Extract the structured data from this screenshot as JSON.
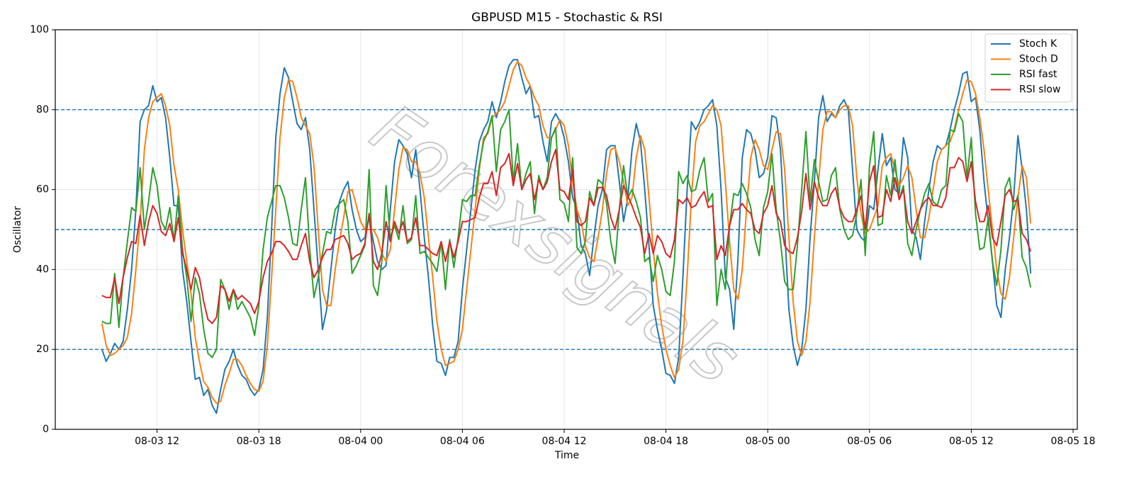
{
  "chart_data": {
    "type": "line",
    "title": "GBPUSD M15 - Stochastic & RSI",
    "xlabel": "Time",
    "ylabel": "Oscillator",
    "watermark": "Forexsignals",
    "x": [
      "08-03 08:45",
      "08-03 09:00",
      "08-03 09:15",
      "08-03 09:30",
      "08-03 09:45",
      "08-03 10:00",
      "08-03 10:15",
      "08-03 10:30",
      "08-03 10:45",
      "08-03 11:00",
      "08-03 11:15",
      "08-03 11:30",
      "08-03 11:45",
      "08-03 12:00",
      "08-03 12:15",
      "08-03 12:30",
      "08-03 12:45",
      "08-03 13:00",
      "08-03 13:15",
      "08-03 13:30",
      "08-03 13:45",
      "08-03 14:00",
      "08-03 14:15",
      "08-03 14:30",
      "08-03 14:45",
      "08-03 15:00",
      "08-03 15:15",
      "08-03 15:30",
      "08-03 15:45",
      "08-03 16:00",
      "08-03 16:15",
      "08-03 16:30",
      "08-03 16:45",
      "08-03 17:00",
      "08-03 17:15",
      "08-03 17:30",
      "08-03 17:45",
      "08-03 18:00",
      "08-03 18:15",
      "08-03 18:30",
      "08-03 18:45",
      "08-03 19:00",
      "08-03 19:15",
      "08-03 19:30",
      "08-03 19:45",
      "08-03 20:00",
      "08-03 20:15",
      "08-03 20:30",
      "08-03 20:45",
      "08-03 21:00",
      "08-03 21:15",
      "08-03 21:30",
      "08-03 21:45",
      "08-03 22:00",
      "08-03 22:15",
      "08-03 22:30",
      "08-03 22:45",
      "08-03 23:00",
      "08-03 23:15",
      "08-03 23:30",
      "08-03 23:45",
      "08-04 00:00",
      "08-04 00:15",
      "08-04 00:30",
      "08-04 00:45",
      "08-04 01:00",
      "08-04 01:15",
      "08-04 01:30",
      "08-04 01:45",
      "08-04 02:00",
      "08-04 02:15",
      "08-04 02:30",
      "08-04 02:45",
      "08-04 03:00",
      "08-04 03:15",
      "08-04 03:30",
      "08-04 03:45",
      "08-04 04:00",
      "08-04 04:15",
      "08-04 04:30",
      "08-04 04:45",
      "08-04 05:00",
      "08-04 05:15",
      "08-04 05:30",
      "08-04 05:45",
      "08-04 06:00",
      "08-04 06:15",
      "08-04 06:30",
      "08-04 06:45",
      "08-04 07:00",
      "08-04 07:15",
      "08-04 07:30",
      "08-04 07:45",
      "08-04 08:00",
      "08-04 08:15",
      "08-04 08:30",
      "08-04 08:45",
      "08-04 09:00",
      "08-04 09:15",
      "08-04 09:30",
      "08-04 09:45",
      "08-04 10:00",
      "08-04 10:15",
      "08-04 10:30",
      "08-04 10:45",
      "08-04 11:00",
      "08-04 11:15",
      "08-04 11:30",
      "08-04 11:45",
      "08-04 12:00",
      "08-04 12:15",
      "08-04 12:30",
      "08-04 12:45",
      "08-04 13:00",
      "08-04 13:15",
      "08-04 13:30",
      "08-04 13:45",
      "08-04 14:00",
      "08-04 14:15",
      "08-04 14:30",
      "08-04 14:45",
      "08-04 15:00",
      "08-04 15:15",
      "08-04 15:30",
      "08-04 15:45",
      "08-04 16:00",
      "08-04 16:15",
      "08-04 16:30",
      "08-04 16:45",
      "08-04 17:00",
      "08-04 17:15",
      "08-04 17:30",
      "08-04 17:45",
      "08-04 18:00",
      "08-04 18:15",
      "08-04 18:30",
      "08-04 18:45",
      "08-04 19:00",
      "08-04 19:15",
      "08-04 19:30",
      "08-04 19:45",
      "08-04 20:00",
      "08-04 20:15",
      "08-04 20:30",
      "08-04 20:45",
      "08-04 21:00",
      "08-04 21:15",
      "08-04 21:30",
      "08-04 21:45",
      "08-04 22:00",
      "08-04 22:15",
      "08-04 22:30",
      "08-04 22:45",
      "08-04 23:00",
      "08-04 23:15",
      "08-04 23:30",
      "08-04 23:45",
      "08-05 00:00",
      "08-05 00:15",
      "08-05 00:30",
      "08-05 00:45",
      "08-05 01:00",
      "08-05 01:15",
      "08-05 01:30",
      "08-05 01:45",
      "08-05 02:00",
      "08-05 02:15",
      "08-05 02:30",
      "08-05 02:45",
      "08-05 03:00",
      "08-05 03:15",
      "08-05 03:30",
      "08-05 03:45",
      "08-05 04:00",
      "08-05 04:15",
      "08-05 04:30",
      "08-05 04:45",
      "08-05 05:00",
      "08-05 05:15",
      "08-05 05:30",
      "08-05 05:45",
      "08-05 06:00",
      "08-05 06:15",
      "08-05 06:30",
      "08-05 06:45",
      "08-05 07:00",
      "08-05 07:15",
      "08-05 07:30",
      "08-05 07:45",
      "08-05 08:00",
      "08-05 08:15",
      "08-05 08:30",
      "08-05 08:45",
      "08-05 09:00",
      "08-05 09:15",
      "08-05 09:30",
      "08-05 09:45",
      "08-05 10:00",
      "08-05 10:15",
      "08-05 10:30",
      "08-05 10:45",
      "08-05 11:00",
      "08-05 11:15",
      "08-05 11:30",
      "08-05 11:45",
      "08-05 12:00",
      "08-05 12:15",
      "08-05 12:30",
      "08-05 12:45",
      "08-05 13:00",
      "08-05 13:15",
      "08-05 13:30",
      "08-05 13:45",
      "08-05 14:00",
      "08-05 14:15",
      "08-05 14:30",
      "08-05 14:45",
      "08-05 15:00",
      "08-05 15:15",
      "08-05 15:30"
    ],
    "series": [
      {
        "name": "Stoch K",
        "color": "#1f77b4",
        "values": [
          20,
          17,
          19,
          21.5,
          20,
          22,
          30,
          40,
          55,
          77,
          80,
          81,
          86,
          82,
          83,
          78,
          68,
          56,
          56,
          40,
          32,
          22,
          12.5,
          13,
          8.5,
          10,
          6,
          4,
          10,
          15,
          17,
          20,
          16,
          13.5,
          12.5,
          10,
          8.5,
          10,
          15,
          28,
          50,
          73,
          84,
          90.5,
          88,
          82,
          76.5,
          75,
          78,
          70,
          55,
          40,
          25,
          30,
          40,
          50,
          57,
          60,
          62,
          55,
          50,
          47,
          48,
          53,
          47,
          42,
          40,
          41,
          55,
          67,
          72.5,
          71,
          69,
          63,
          70,
          60,
          48,
          38,
          26,
          17,
          16.5,
          13.5,
          18,
          18,
          22,
          35,
          45,
          55,
          65,
          72,
          75,
          77,
          82,
          78,
          82,
          87,
          91,
          92.5,
          92.5,
          88,
          84,
          86,
          78,
          78.5,
          72,
          67,
          77,
          79,
          77,
          73,
          67,
          58,
          55,
          46,
          44,
          38.5,
          48,
          56,
          60,
          70,
          71,
          71,
          62,
          52,
          58,
          70,
          76.5,
          72,
          60,
          46,
          31,
          25,
          20,
          14,
          13.5,
          11.5,
          18,
          38,
          60,
          77,
          75,
          77,
          80,
          81,
          82.5,
          76,
          60,
          38,
          35,
          25,
          43,
          68,
          75,
          74,
          70,
          63,
          64,
          68,
          78.5,
          78,
          70,
          50,
          30,
          21,
          16,
          20,
          30,
          48,
          62,
          78,
          83.5,
          77,
          79,
          78,
          81,
          82.5,
          80,
          65,
          50,
          48,
          47,
          56,
          55,
          65,
          74,
          66,
          68,
          60,
          59,
          73,
          68,
          50,
          48,
          42.5,
          52,
          60,
          67,
          71,
          70,
          71,
          75,
          80,
          84,
          89,
          89.5,
          82,
          83,
          75,
          62,
          52,
          42,
          31,
          28,
          40,
          48,
          58,
          73.5,
          65,
          55,
          39
        ]
      },
      {
        "name": "Stoch D",
        "color": "#ff7f0e",
        "values": [
          26.5,
          21,
          18.5,
          19,
          20,
          21,
          23,
          29,
          40,
          52,
          70,
          78,
          82,
          83,
          84,
          81,
          76,
          66,
          60,
          50,
          42,
          34,
          23,
          17,
          12,
          10.5,
          8,
          6.5,
          7,
          11,
          14,
          17.5,
          17.5,
          16,
          13.5,
          11.5,
          10,
          9.5,
          12,
          21,
          38,
          55,
          73,
          83,
          87.5,
          87,
          83,
          78,
          76,
          74,
          66,
          50,
          35,
          31,
          31,
          40,
          47,
          53,
          59.5,
          60,
          56,
          52,
          50,
          50,
          50,
          48,
          44,
          42,
          45,
          55,
          65,
          70.5,
          70,
          67,
          67,
          64,
          58,
          48,
          38,
          27,
          20,
          16,
          16.5,
          17,
          20,
          25,
          35,
          45,
          55,
          65,
          73,
          74,
          78,
          79,
          80,
          82,
          86,
          90,
          92,
          91,
          88,
          86,
          83,
          81,
          76,
          73,
          73,
          75,
          77.5,
          76,
          71,
          62,
          55,
          52,
          46,
          43,
          42,
          48,
          55,
          64,
          70,
          70.5,
          67,
          62,
          56,
          58,
          68,
          73.5,
          70,
          58,
          45,
          34,
          26,
          20,
          16,
          13,
          15,
          22,
          38,
          58,
          72,
          76,
          77,
          79,
          81,
          80,
          76,
          62,
          47,
          35,
          32.5,
          40,
          55,
          68,
          72.5,
          70,
          66,
          65,
          70,
          74.5,
          74,
          65,
          48,
          32,
          22,
          18.5,
          22,
          32,
          48,
          62,
          75,
          79.5,
          79.5,
          78,
          80,
          81,
          81,
          76,
          63,
          54,
          49,
          50,
          53,
          56,
          66,
          68,
          69,
          65,
          61,
          63,
          66,
          63,
          55,
          48,
          48,
          53,
          60,
          67,
          70,
          71,
          72,
          75,
          80,
          84,
          87.5,
          87,
          84,
          78,
          70,
          60,
          50,
          40,
          34,
          32.5,
          38,
          48,
          58,
          66,
          63,
          51.5
        ]
      },
      {
        "name": "RSI fast",
        "color": "#2ca02c",
        "values": [
          27,
          26.5,
          26.5,
          39,
          25.5,
          38,
          47,
          55.5,
          54.5,
          65.5,
          50,
          57,
          65.5,
          61,
          52,
          50,
          55.5,
          47,
          58.5,
          45,
          38,
          27,
          38,
          34,
          25,
          19,
          18,
          20,
          37.5,
          35,
          30,
          35,
          30,
          32,
          30,
          28,
          23.5,
          31,
          45,
          53,
          57,
          61,
          61,
          58,
          53,
          46.5,
          46,
          55,
          63,
          45,
          33,
          38,
          44,
          49.5,
          49,
          55,
          56.5,
          57.5,
          52,
          39,
          41,
          43.5,
          46,
          65,
          36,
          33.5,
          42,
          61,
          48,
          51,
          47.5,
          56,
          46.5,
          47.5,
          58.5,
          44,
          44.5,
          43,
          41.5,
          39.5,
          47,
          35,
          47.5,
          40.5,
          48,
          57.5,
          57,
          58.5,
          58.5,
          66,
          72,
          74.5,
          78.5,
          64.5,
          75,
          77,
          80,
          62,
          71.5,
          60,
          64,
          67,
          54,
          63.5,
          60,
          63,
          73,
          75.5,
          57.5,
          56.5,
          52,
          68,
          45.5,
          44,
          47,
          59.5,
          56,
          62.5,
          61.5,
          56.5,
          47,
          41.5,
          55,
          66,
          58,
          60,
          57,
          53,
          42,
          43,
          37,
          43.5,
          40,
          34.5,
          33.5,
          42,
          64.5,
          61.5,
          63.5,
          59.5,
          60,
          65,
          68,
          57,
          59,
          31,
          40,
          35,
          51,
          59,
          58.5,
          61.5,
          59,
          55.5,
          47.5,
          43.5,
          55.5,
          59.5,
          69,
          55,
          47,
          37,
          35,
          35,
          46,
          60,
          74.5,
          57,
          67.5,
          62,
          57,
          57.5,
          63.5,
          65.5,
          55,
          50,
          47.5,
          48.5,
          54,
          62.5,
          43.5,
          66,
          74.5,
          51,
          51.5,
          63.5,
          58.5,
          67.5,
          57.5,
          61,
          46.5,
          43.5,
          50,
          55,
          59,
          61.5,
          57,
          56,
          60,
          61,
          75,
          74.5,
          79,
          77,
          63,
          73,
          54,
          45,
          45.5,
          53,
          42,
          36,
          45,
          60.5,
          63,
          55,
          58.5,
          43,
          40.5,
          35.5
        ]
      },
      {
        "name": "RSI slow",
        "color": "#d62728",
        "values": [
          33.5,
          33,
          33,
          38,
          31.5,
          38,
          43,
          47,
          46.5,
          53.5,
          46,
          52,
          56,
          54,
          49.5,
          48.5,
          51.5,
          47,
          53,
          44,
          40,
          35,
          40.5,
          38,
          32,
          27.5,
          26.5,
          28,
          36,
          35,
          32,
          35,
          32.5,
          33.5,
          32.5,
          31.5,
          29,
          32,
          38,
          42,
          44,
          47,
          47,
          46,
          44.5,
          42.5,
          42.5,
          46,
          49,
          42,
          38,
          40,
          43,
          45,
          45,
          47.5,
          48,
          48.5,
          46.5,
          42.5,
          43.5,
          44,
          46.5,
          54,
          42,
          40,
          44,
          52,
          47,
          52,
          49,
          52,
          47,
          48,
          53,
          46,
          46,
          45,
          44,
          43.5,
          47,
          42,
          47,
          43,
          47,
          52,
          52,
          52.5,
          53,
          58,
          61.5,
          61.5,
          64.5,
          58.5,
          65.5,
          66.5,
          69,
          61,
          66.5,
          60,
          62.5,
          64,
          57.5,
          62.5,
          60,
          62,
          67,
          70,
          60,
          59.5,
          57.5,
          65,
          52,
          51,
          52,
          58,
          56,
          60.5,
          60.5,
          58.5,
          53,
          50,
          55,
          61,
          58.5,
          56,
          53,
          50.5,
          44,
          49,
          44,
          48.5,
          47,
          44,
          43,
          47.5,
          57.5,
          56.5,
          58,
          55.5,
          56,
          58,
          59.5,
          55.5,
          56,
          42.5,
          46,
          43.5,
          51,
          55,
          55,
          56.5,
          55,
          54,
          50,
          49,
          54,
          56,
          61,
          54,
          52,
          46,
          44.5,
          44,
          48,
          54.5,
          64,
          55,
          62,
          58,
          56,
          56,
          59,
          60.5,
          55.5,
          53,
          52,
          52,
          55,
          58.5,
          50,
          62,
          66,
          53,
          53.5,
          60,
          57,
          63,
          57.5,
          60,
          52,
          49,
          52,
          55,
          57,
          58,
          56,
          56,
          55.5,
          58,
          65.5,
          65.5,
          68,
          67,
          62,
          67,
          57,
          52,
          52,
          56,
          48,
          46,
          52,
          58.5,
          60,
          57,
          57.5,
          49,
          47.5,
          44.5
        ]
      }
    ],
    "xlim": [
      "08-03 06:00",
      "08-05 18:15"
    ],
    "xticks": [
      {
        "value": "08-03 12:00",
        "label": "08-03 12"
      },
      {
        "value": "08-03 18:00",
        "label": "08-03 18"
      },
      {
        "value": "08-04 00:00",
        "label": "08-04 00"
      },
      {
        "value": "08-04 06:00",
        "label": "08-04 06"
      },
      {
        "value": "08-04 12:00",
        "label": "08-04 12"
      },
      {
        "value": "08-04 18:00",
        "label": "08-04 18"
      },
      {
        "value": "08-05 00:00",
        "label": "08-05 00"
      },
      {
        "value": "08-05 06:00",
        "label": "08-05 06"
      },
      {
        "value": "08-05 12:00",
        "label": "08-05 12"
      },
      {
        "value": "08-05 18:00",
        "label": "08-05 18"
      }
    ],
    "ylim": [
      0,
      100
    ],
    "yticks": [
      0,
      20,
      40,
      60,
      80,
      100
    ],
    "hlines": [
      20,
      50,
      80
    ],
    "hline_color": "#1f77b4",
    "grid": true,
    "legend": "upper right"
  }
}
